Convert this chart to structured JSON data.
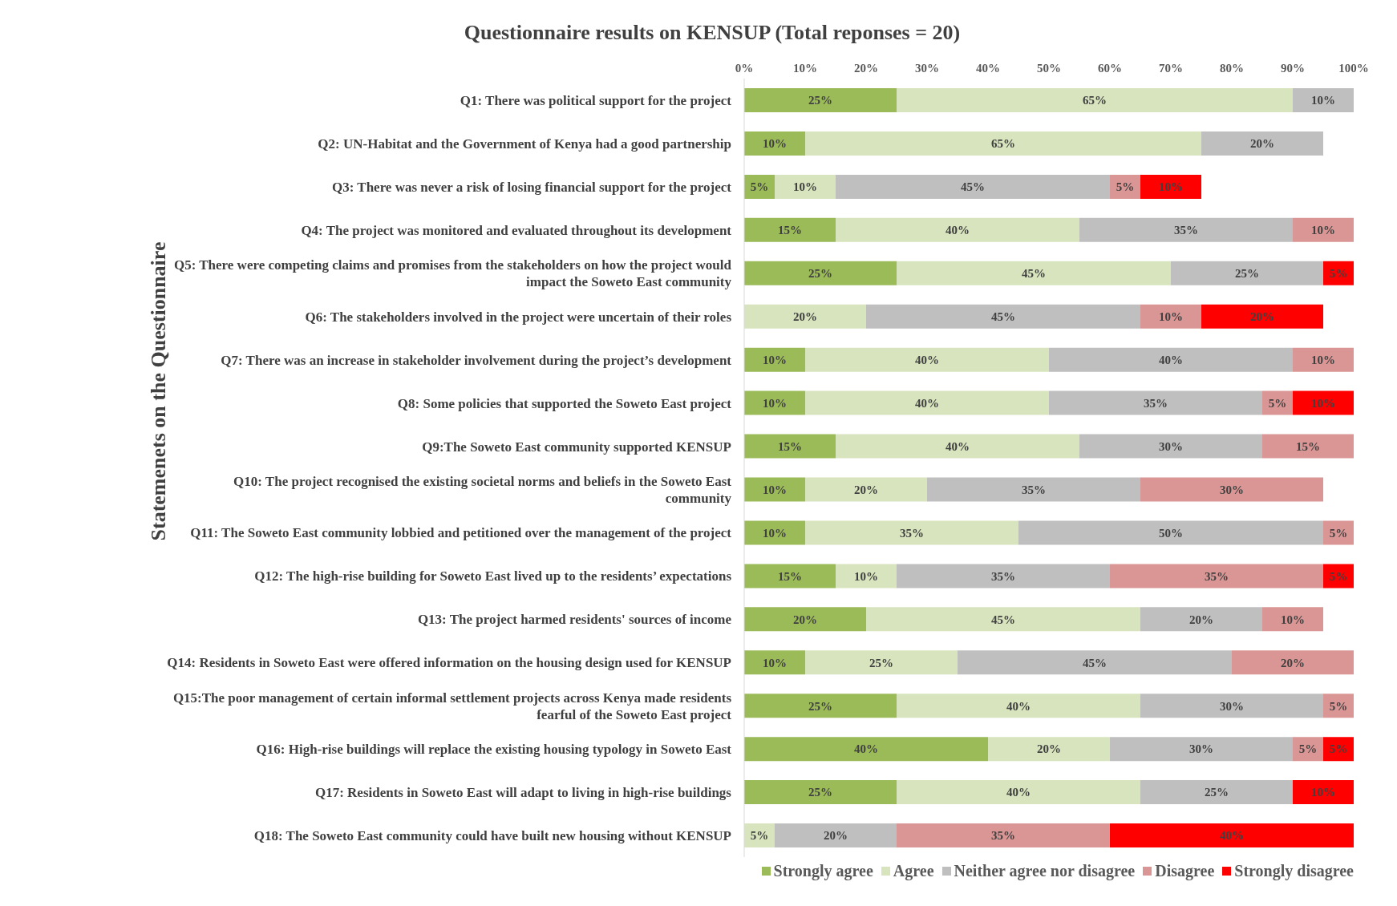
{
  "chart_data": {
    "type": "bar",
    "orientation": "horizontal",
    "stacked": true,
    "title": "Questionnaire results on KENSUP (Total reponses = 20)",
    "ylabel": "Statemenets on the Questionnaire",
    "categories": [
      "Q1: There was political support for the project",
      "Q2: UN-Habitat and the Government of Kenya had a good partnership",
      "Q3: There was never a risk of losing financial support for the project",
      "Q4: The project was monitored and evaluated throughout its development",
      "Q5: There were competing claims and promises from the stakeholders on how the project would impact the Soweto East community",
      "Q6: The stakeholders involved in the project were uncertain of their roles",
      "Q7: There was an increase in stakeholder involvement during the project’s development",
      "Q8: Some policies that supported the Soweto East project",
      "Q9:The Soweto East community supported KENSUP",
      "Q10: The project recognised the existing societal norms and beliefs in the Soweto East community",
      "Q11: The Soweto East community lobbied and petitioned over the management of the project",
      "Q12: The high-rise building for Soweto East lived up to the residents’ expectations",
      "Q13: The project harmed residents' sources of income",
      "Q14: Residents in Soweto East were offered information on the housing design used for KENSUP",
      "Q15:The poor management of certain informal settlement projects across Kenya made residents fearful of the Soweto East project",
      "Q16: High-rise buildings will replace the existing housing typology in Soweto East",
      "Q17: Residents in Soweto East will adapt to living in high-rise buildings",
      "Q18: The Soweto East community could have built new housing without KENSUP"
    ],
    "series": [
      {
        "name": "Strongly agree",
        "color": "#9bbb59",
        "values": [
          25,
          10,
          5,
          15,
          25,
          null,
          10,
          10,
          15,
          10,
          10,
          15,
          20,
          10,
          25,
          40,
          25,
          null
        ],
        "value_labels": [
          "25%",
          "10%",
          "5%",
          "15%",
          "25%",
          null,
          "10%",
          "10%",
          "15%",
          "10%",
          "10%",
          "15%",
          "20%",
          "10%",
          "25%",
          "40%",
          "25%",
          null
        ]
      },
      {
        "name": "Agree",
        "color": "#d7e4bd",
        "values": [
          65,
          65,
          10,
          40,
          45,
          20,
          40,
          40,
          40,
          20,
          35,
          10,
          45,
          25,
          40,
          20,
          40,
          5
        ],
        "value_labels": [
          "65%",
          "65%",
          "10%",
          "40%",
          "45%",
          "20%",
          "40%",
          "40%",
          "40%",
          "20%",
          "35%",
          "10%",
          "45%",
          "25%",
          "40%",
          "20%",
          "40%",
          "5%"
        ]
      },
      {
        "name": "Neither agree nor disagree",
        "color": "#bfbfbf",
        "values": [
          10,
          20,
          45,
          35,
          25,
          45,
          40,
          35,
          30,
          35,
          50,
          35,
          20,
          45,
          30,
          30,
          25,
          20
        ],
        "value_labels": [
          "10%",
          "20%",
          "45%",
          "35%",
          "25%",
          "45%",
          "40%",
          "35%",
          "30%",
          "35%",
          "50%",
          "35%",
          "20%",
          "45%",
          "30%",
          "30%",
          "25%",
          "20%"
        ]
      },
      {
        "name": "Disagree",
        "color": "#d99694",
        "values": [
          null,
          null,
          5,
          10,
          null,
          10,
          10,
          5,
          15,
          30,
          5,
          35,
          10,
          20,
          5,
          5,
          null,
          35
        ],
        "value_labels": [
          null,
          null,
          "5%",
          "10%",
          null,
          "10%",
          "10%",
          "5%",
          "15%",
          "30%",
          "5%",
          "35%",
          "10%",
          "20%",
          "5%",
          "5%",
          null,
          "35%"
        ]
      },
      {
        "name": "Strongly disagree",
        "color": "#ff0000",
        "values": [
          null,
          null,
          10,
          null,
          5,
          20,
          null,
          10,
          null,
          null,
          null,
          5,
          null,
          null,
          null,
          5,
          10,
          40
        ],
        "value_labels": [
          null,
          null,
          "10%",
          null,
          "5%",
          "20%",
          null,
          "10%",
          null,
          null,
          null,
          "5%",
          null,
          null,
          null,
          "5%",
          "10%",
          "40%"
        ]
      }
    ],
    "xlim": [
      0,
      100
    ],
    "xticks": [
      {
        "value": 0,
        "label": "0%"
      },
      {
        "value": 10,
        "label": "10%"
      },
      {
        "value": 20,
        "label": "20%"
      },
      {
        "value": 30,
        "label": "30%"
      },
      {
        "value": 40,
        "label": "40%"
      },
      {
        "value": 50,
        "label": "50%"
      },
      {
        "value": 60,
        "label": "60%"
      },
      {
        "value": 70,
        "label": "70%"
      },
      {
        "value": 80,
        "label": "80%"
      },
      {
        "value": 90,
        "label": "90%"
      },
      {
        "value": 100,
        "label": "100%"
      }
    ],
    "grid": false,
    "legend": "bottom right"
  }
}
